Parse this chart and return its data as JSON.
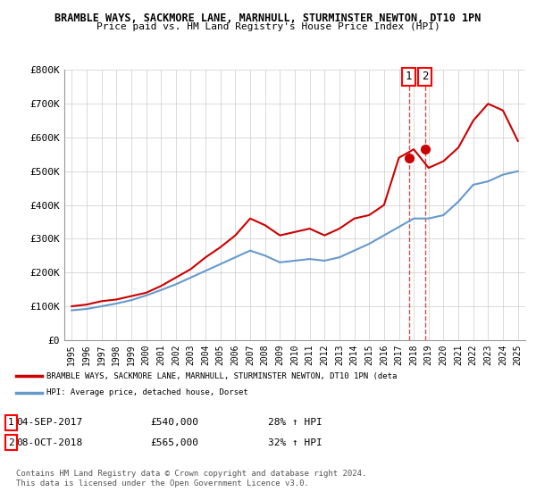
{
  "title1": "BRAMBLE WAYS, SACKMORE LANE, MARNHULL, STURMINSTER NEWTON, DT10 1PN",
  "title2": "Price paid vs. HM Land Registry's House Price Index (HPI)",
  "ylabel": "",
  "xlabel": "",
  "ylim": [
    0,
    800000
  ],
  "yticks": [
    0,
    100000,
    200000,
    300000,
    400000,
    500000,
    600000,
    700000,
    800000
  ],
  "ytick_labels": [
    "£0",
    "£100K",
    "£200K",
    "£300K",
    "£400K",
    "£500K",
    "£600K",
    "£700K",
    "£800K"
  ],
  "xticks": [
    1995,
    1996,
    1997,
    1998,
    1999,
    2000,
    2001,
    2002,
    2003,
    2004,
    2005,
    2006,
    2007,
    2008,
    2009,
    2010,
    2011,
    2012,
    2013,
    2014,
    2015,
    2016,
    2017,
    2018,
    2019,
    2020,
    2021,
    2022,
    2023,
    2024,
    2025
  ],
  "red_line_color": "#cc0000",
  "blue_line_color": "#6699cc",
  "red_years": [
    1995,
    1996,
    1997,
    1998,
    1999,
    2000,
    2001,
    2002,
    2003,
    2004,
    2005,
    2006,
    2007,
    2008,
    2009,
    2010,
    2011,
    2012,
    2013,
    2014,
    2015,
    2016,
    2017,
    2018,
    2019,
    2020,
    2021,
    2022,
    2023,
    2024,
    2025
  ],
  "red_values": [
    100000,
    105000,
    115000,
    120000,
    130000,
    140000,
    160000,
    185000,
    210000,
    245000,
    275000,
    310000,
    360000,
    340000,
    310000,
    320000,
    330000,
    310000,
    330000,
    360000,
    370000,
    400000,
    540000,
    565000,
    510000,
    530000,
    570000,
    650000,
    700000,
    680000,
    590000
  ],
  "blue_years": [
    1995,
    1996,
    1997,
    1998,
    1999,
    2000,
    2001,
    2002,
    2003,
    2004,
    2005,
    2006,
    2007,
    2008,
    2009,
    2010,
    2011,
    2012,
    2013,
    2014,
    2015,
    2016,
    2017,
    2018,
    2019,
    2020,
    2021,
    2022,
    2023,
    2024,
    2025
  ],
  "blue_values": [
    88000,
    92000,
    100000,
    108000,
    118000,
    132000,
    148000,
    165000,
    185000,
    205000,
    225000,
    245000,
    265000,
    250000,
    230000,
    235000,
    240000,
    235000,
    245000,
    265000,
    285000,
    310000,
    335000,
    360000,
    360000,
    370000,
    410000,
    460000,
    470000,
    490000,
    500000
  ],
  "point1_x": 2017.67,
  "point1_y": 540000,
  "point2_x": 2018.77,
  "point2_y": 565000,
  "point1_label": "1",
  "point2_label": "2",
  "legend_red_text": "BRAMBLE WAYS, SACKMORE LANE, MARNHULL, STURMINSTER NEWTON, DT10 1PN (deta",
  "legend_blue_text": "HPI: Average price, detached house, Dorset",
  "table_row1": [
    "1",
    "04-SEP-2017",
    "£540,000",
    "28% ↑ HPI"
  ],
  "table_row2": [
    "2",
    "08-OCT-2018",
    "£565,000",
    "32% ↑ HPI"
  ],
  "footer": "Contains HM Land Registry data © Crown copyright and database right 2024.\nThis data is licensed under the Open Government Licence v3.0.",
  "bg_color": "#ffffff",
  "grid_color": "#cccccc"
}
